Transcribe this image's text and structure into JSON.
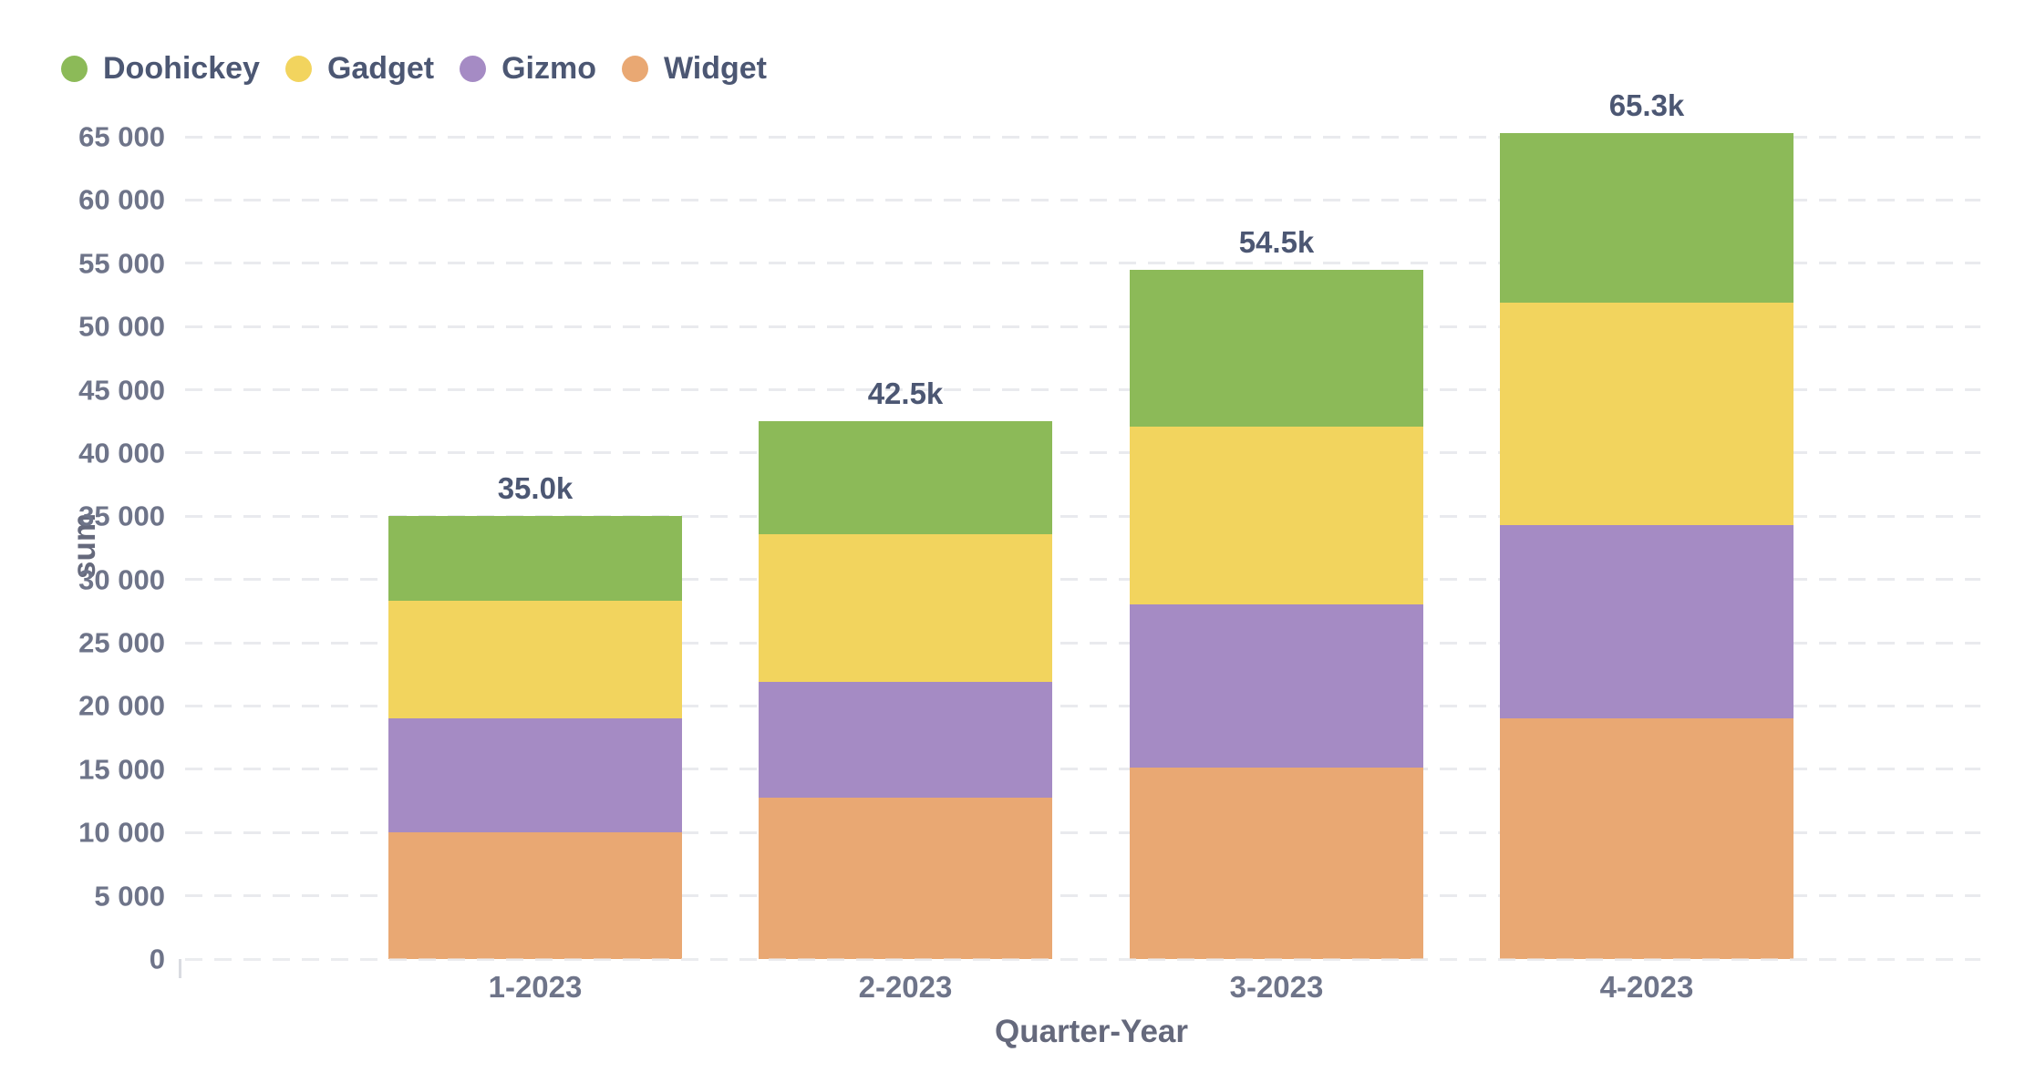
{
  "legend": {
    "items": [
      {
        "label": "Doohickey",
        "color": "#8CBA58"
      },
      {
        "label": "Gadget",
        "color": "#F2D45E"
      },
      {
        "label": "Gizmo",
        "color": "#A58BC4"
      },
      {
        "label": "Widget",
        "color": "#E9A873"
      }
    ]
  },
  "y_axis": {
    "title": "sum",
    "tick_labels": [
      "0",
      "5 000",
      "10 000",
      "15 000",
      "20 000",
      "25 000",
      "30 000",
      "35 000",
      "40 000",
      "45 000",
      "50 000",
      "55 000",
      "60 000",
      "65 000"
    ],
    "tick_step": 5000,
    "max": 65000
  },
  "x_axis": {
    "title": "Quarter-Year",
    "categories": [
      "1-2023",
      "2-2023",
      "3-2023",
      "4-2023"
    ]
  },
  "chart_data": {
    "type": "bar",
    "stacked": true,
    "title": "",
    "xlabel": "Quarter-Year",
    "ylabel": "sum",
    "ylim": [
      0,
      65000
    ],
    "grid": true,
    "legend_position": "top-left",
    "categories": [
      "1-2023",
      "2-2023",
      "3-2023",
      "4-2023"
    ],
    "series": [
      {
        "name": "Widget",
        "color": "#E9A873",
        "values": [
          10000,
          12750,
          15100,
          19000
        ]
      },
      {
        "name": "Gizmo",
        "color": "#A58BC4",
        "values": [
          9050,
          9150,
          12900,
          15300
        ]
      },
      {
        "name": "Gadget",
        "color": "#F2D45E",
        "values": [
          9250,
          11700,
          14100,
          17600
        ]
      },
      {
        "name": "Doohickey",
        "color": "#8CBA58",
        "values": [
          6700,
          8900,
          12400,
          13400
        ]
      }
    ],
    "totals": [
      35000,
      42500,
      54500,
      65300
    ],
    "total_labels": [
      "35.0k",
      "42.5k",
      "54.5k",
      "65.3k"
    ]
  }
}
